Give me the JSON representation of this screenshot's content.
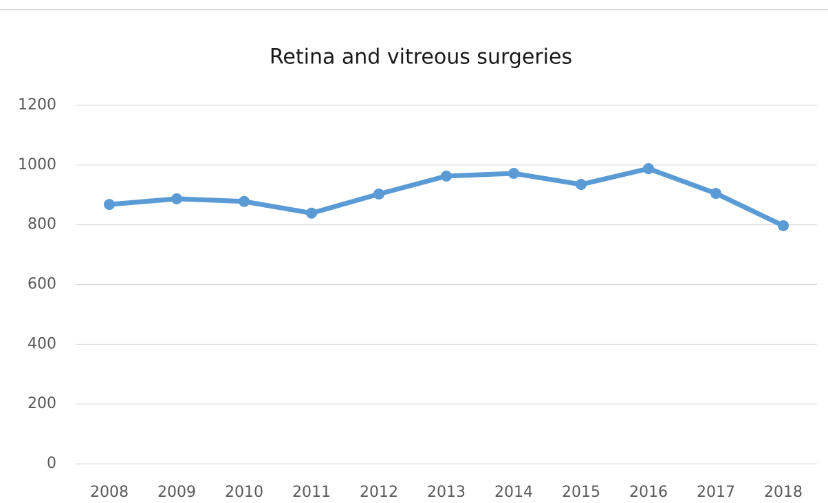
{
  "chart_data": {
    "type": "line",
    "title": "Retina and vitreous surgeries",
    "categories": [
      "2008",
      "2009",
      "2010",
      "2011",
      "2012",
      "2013",
      "2014",
      "2015",
      "2016",
      "2017",
      "2018"
    ],
    "series": [
      {
        "name": "Retina and vitreous surgeries",
        "color": "#5b9bd5",
        "values": [
          868,
          887,
          878,
          839,
          903,
          963,
          972,
          935,
          988,
          905,
          797
        ]
      }
    ],
    "ylim": [
      0,
      1200
    ],
    "yticks": [
      0,
      200,
      400,
      600,
      800,
      1000,
      1200
    ],
    "grid": true
  }
}
